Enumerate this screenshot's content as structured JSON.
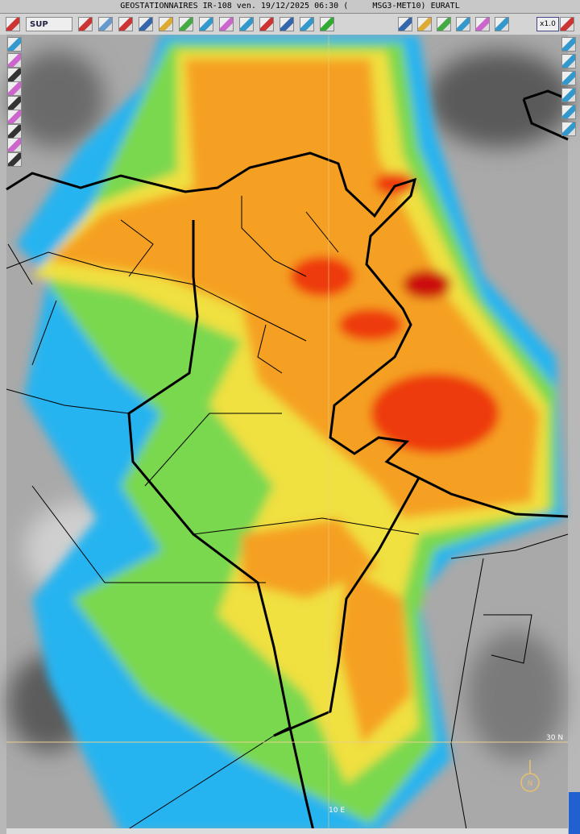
{
  "title_bar": {
    "title": "GEOSTATIONNAIRES IR-108 ven. 19/12/2025 06:30 (     MSG3-MET10) EURATL"
  },
  "toolbar": {
    "sup_label": "SUP",
    "zoom_label": "x1.0"
  },
  "map": {
    "lat_label": "30 N",
    "lon_label": "10 E",
    "north_label": "N"
  }
}
